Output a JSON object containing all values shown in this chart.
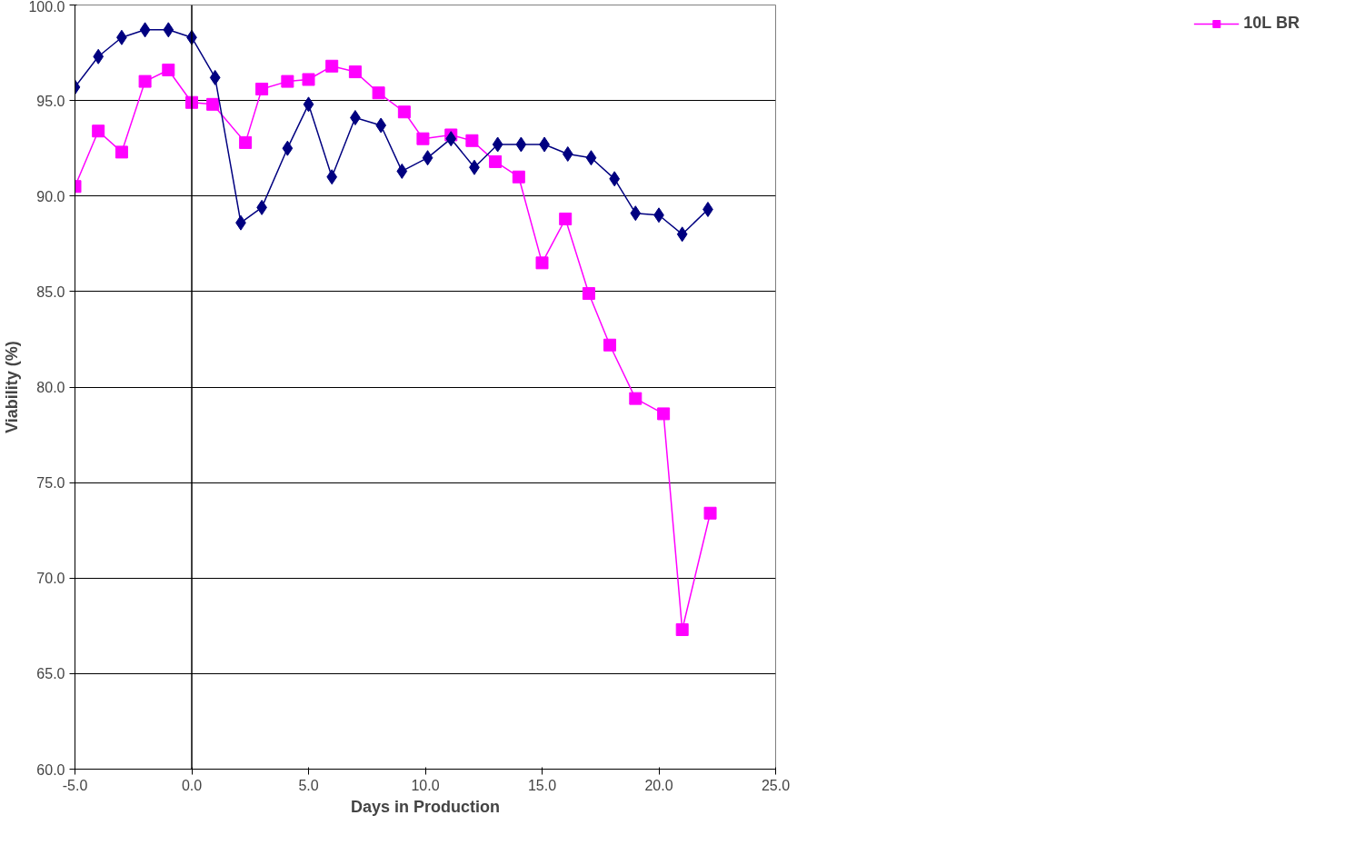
{
  "chart_data": {
    "type": "line",
    "xlabel": "Days in Production",
    "ylabel": "Viability (%)",
    "xlim": [
      -5,
      25
    ],
    "ylim": [
      60,
      100
    ],
    "xticks": [
      {
        "value": -5,
        "label": "-5.0"
      },
      {
        "value": 0,
        "label": "0.0"
      },
      {
        "value": 5,
        "label": "5.0"
      },
      {
        "value": 10,
        "label": "10.0"
      },
      {
        "value": 15,
        "label": "15.0"
      },
      {
        "value": 20,
        "label": "20.0"
      },
      {
        "value": 25,
        "label": "25.0"
      }
    ],
    "yticks": [
      {
        "value": 60,
        "label": "60.0"
      },
      {
        "value": 65,
        "label": "65.0"
      },
      {
        "value": 70,
        "label": "70.0"
      },
      {
        "value": 75,
        "label": "75.0"
      },
      {
        "value": 80,
        "label": "80.0"
      },
      {
        "value": 85,
        "label": "85.0"
      },
      {
        "value": 90,
        "label": "90.0"
      },
      {
        "value": 95,
        "label": "95.0"
      },
      {
        "value": 100,
        "label": "100.0"
      }
    ],
    "grid": "y",
    "legend": "right",
    "line_style": "solid",
    "ref_lines": [
      {
        "axis": "x",
        "value": 0,
        "color": "#000000"
      }
    ],
    "series": [
      {
        "color": "#000080",
        "marker": "diamond",
        "x": [
          -5,
          -4,
          -3,
          -2,
          -1,
          0,
          1,
          2.1,
          3,
          4.1,
          5,
          6,
          7,
          8.1,
          9,
          10.1,
          11.1,
          12.1,
          13.1,
          14.1,
          15.1,
          16.1,
          17.1,
          18.1,
          19,
          20,
          21,
          22.1
        ],
        "values": [
          95.7,
          97.3,
          98.3,
          98.7,
          98.7,
          98.3,
          96.2,
          88.6,
          89.4,
          92.5,
          94.8,
          91.0,
          94.1,
          93.7,
          91.3,
          92.0,
          93.0,
          91.5,
          92.7,
          92.7,
          92.7,
          92.2,
          92.0,
          90.9,
          89.1,
          89.0,
          88.0,
          89.3
        ]
      },
      {
        "name": "10L BR",
        "color": "#ff00ff",
        "marker": "square",
        "x": [
          -5,
          -4,
          -3,
          -2,
          -1,
          0,
          0.9,
          2.3,
          3,
          4.1,
          5,
          6,
          7,
          8,
          9.1,
          9.9,
          11.1,
          12,
          13,
          14,
          15,
          16,
          17,
          17.9,
          19,
          20.2,
          21,
          22.2
        ],
        "values": [
          90.5,
          93.4,
          92.3,
          96.0,
          96.6,
          94.9,
          94.8,
          92.8,
          95.6,
          96.0,
          96.1,
          96.8,
          96.5,
          95.4,
          94.4,
          93.0,
          93.2,
          92.9,
          91.8,
          91.0,
          86.5,
          88.8,
          84.9,
          82.2,
          79.4,
          78.6,
          67.3,
          73.4
        ]
      }
    ]
  }
}
